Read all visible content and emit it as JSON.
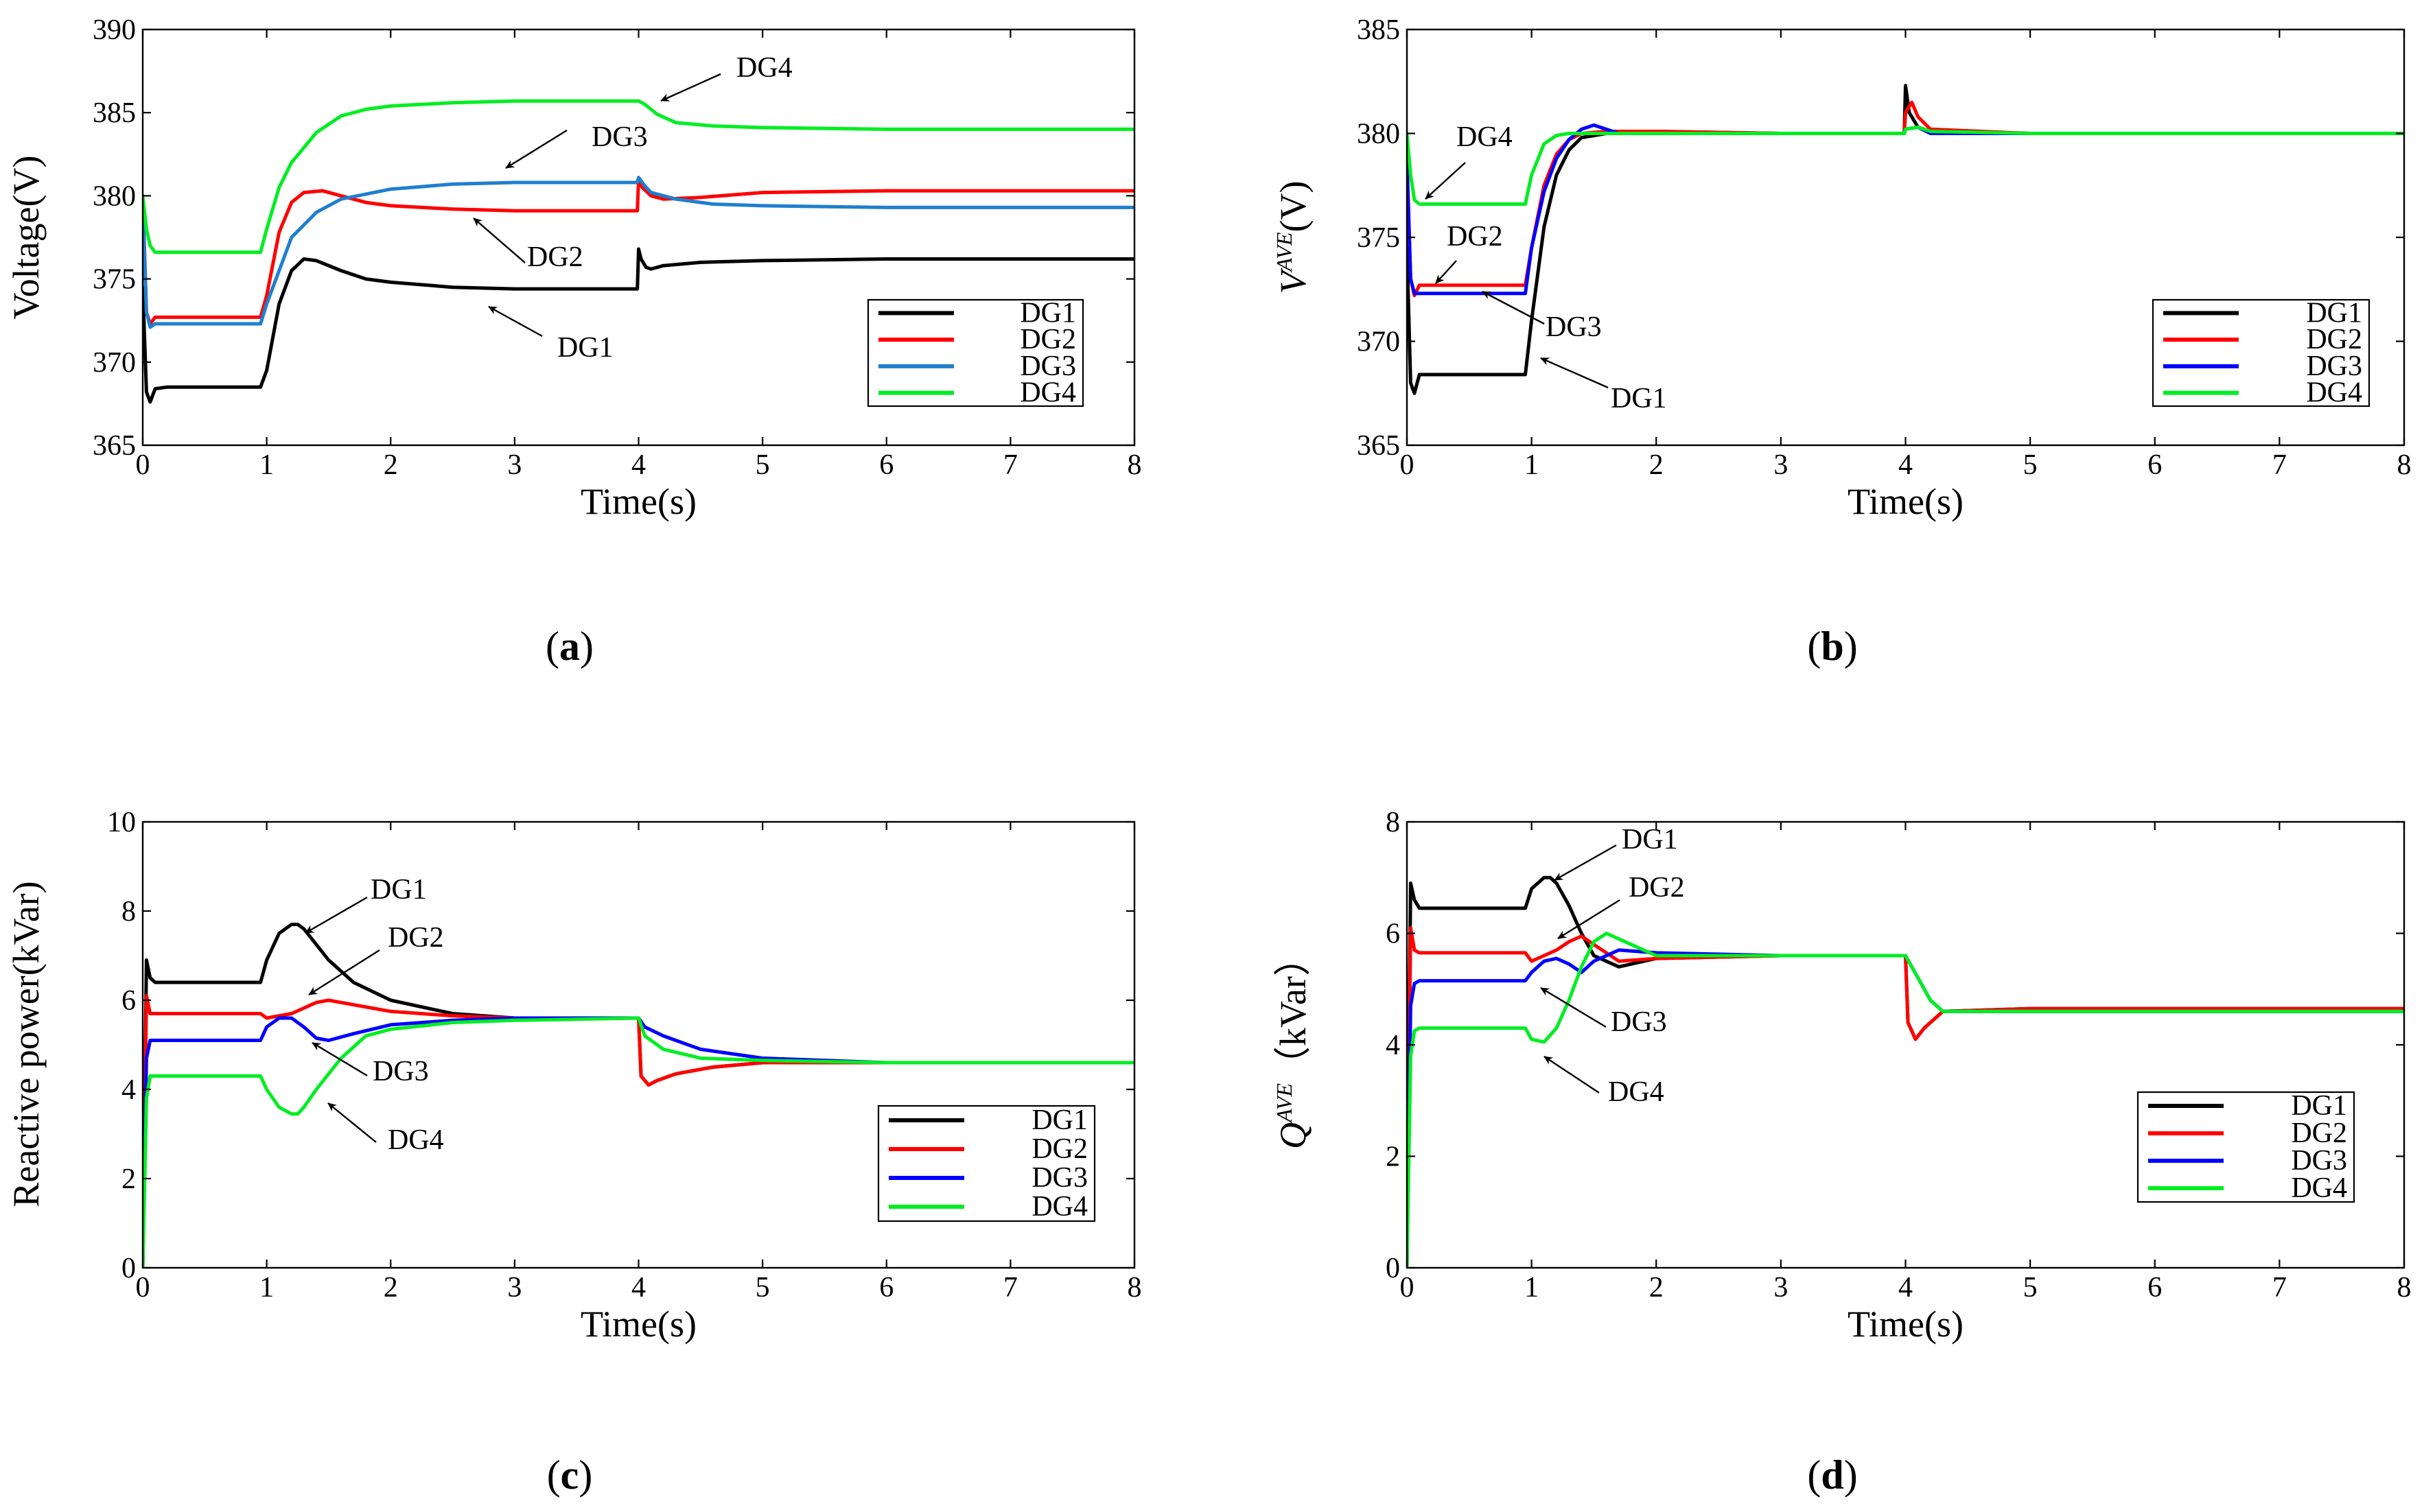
{
  "chart_data": [
    {
      "panel": "(a)",
      "type": "line",
      "xlabel": "Time(s)",
      "ylabel": "Voltage(V)",
      "xlim": [
        0,
        8
      ],
      "ylim": [
        365,
        390
      ],
      "xticks": [
        "0",
        "1",
        "2",
        "3",
        "4",
        "5",
        "6",
        "7",
        "8"
      ],
      "yticks": [
        "365",
        "370",
        "375",
        "380",
        "385",
        "390"
      ],
      "legend": "bottom-right",
      "annotations": [
        "DG4",
        "DG3",
        "DG2",
        "DG1"
      ],
      "series": [
        {
          "name": "DG1",
          "color": "#000000",
          "x": [
            0,
            0.03,
            0.06,
            0.1,
            0.2,
            0.5,
            0.95,
            1.0,
            1.1,
            1.2,
            1.3,
            1.4,
            1.6,
            1.8,
            2.0,
            2.5,
            3.0,
            3.5,
            3.99,
            4.0,
            4.02,
            4.06,
            4.1,
            4.2,
            4.5,
            5.0,
            6.0,
            7.0,
            8.0
          ],
          "y": [
            374.5,
            368.2,
            367.6,
            368.4,
            368.5,
            368.5,
            368.5,
            369.5,
            373.5,
            375.5,
            376.2,
            376.1,
            375.5,
            375.0,
            374.8,
            374.5,
            374.4,
            374.4,
            374.4,
            376.8,
            376.2,
            375.7,
            375.6,
            375.8,
            376.0,
            376.1,
            376.2,
            376.2,
            376.2
          ]
        },
        {
          "name": "DG2",
          "color": "#ff0000",
          "x": [
            0,
            0.03,
            0.06,
            0.1,
            0.2,
            0.5,
            0.95,
            1.0,
            1.1,
            1.2,
            1.3,
            1.45,
            1.6,
            1.8,
            2.0,
            2.5,
            3.0,
            3.5,
            3.99,
            4.0,
            4.03,
            4.1,
            4.2,
            4.5,
            5.0,
            6.0,
            7.0,
            8.0
          ],
          "y": [
            380.0,
            373.0,
            372.3,
            372.7,
            372.7,
            372.7,
            372.7,
            374.0,
            377.8,
            379.6,
            380.2,
            380.3,
            380.0,
            379.6,
            379.4,
            379.2,
            379.1,
            379.1,
            379.1,
            381.0,
            380.5,
            380.0,
            379.8,
            379.9,
            380.2,
            380.3,
            380.3,
            380.3
          ]
        },
        {
          "name": "DG3",
          "color": "#1f7fcf",
          "x": [
            0,
            0.03,
            0.06,
            0.1,
            0.2,
            0.5,
            0.95,
            1.0,
            1.2,
            1.4,
            1.6,
            2.0,
            2.5,
            3.0,
            3.5,
            3.99,
            4.0,
            4.05,
            4.1,
            4.3,
            4.6,
            5.0,
            6.0,
            7.0,
            8.0
          ],
          "y": [
            379.5,
            373.0,
            372.1,
            372.3,
            372.3,
            372.3,
            372.3,
            373.5,
            377.5,
            379.0,
            379.8,
            380.4,
            380.7,
            380.8,
            380.8,
            380.8,
            381.1,
            380.6,
            380.2,
            379.8,
            379.5,
            379.4,
            379.3,
            379.3,
            379.3
          ]
        },
        {
          "name": "DG4",
          "color": "#00ee22",
          "x": [
            0,
            0.03,
            0.06,
            0.1,
            0.2,
            0.5,
            0.95,
            1.0,
            1.1,
            1.2,
            1.4,
            1.6,
            1.8,
            2.0,
            2.5,
            3.0,
            3.5,
            4.0,
            4.05,
            4.15,
            4.3,
            4.6,
            5.0,
            6.0,
            7.0,
            8.0
          ],
          "y": [
            380.0,
            378.0,
            377.0,
            376.6,
            376.6,
            376.6,
            376.6,
            378.0,
            380.5,
            382.0,
            383.8,
            384.8,
            385.2,
            385.4,
            385.6,
            385.7,
            385.7,
            385.7,
            385.5,
            384.9,
            384.4,
            384.2,
            384.1,
            384.0,
            384.0,
            384.0
          ]
        }
      ]
    },
    {
      "panel": "(b)",
      "type": "line",
      "xlabel": "Time(s)",
      "ylabel": "V",
      "ylabel_sup": "AVE",
      "ylabel_unit": "(V)",
      "xlim": [
        0,
        8
      ],
      "ylim": [
        365,
        385
      ],
      "xticks": [
        "0",
        "1",
        "2",
        "3",
        "4",
        "5",
        "6",
        "7",
        "8"
      ],
      "yticks": [
        "365",
        "370",
        "375",
        "380",
        "385"
      ],
      "legend": "bottom-right",
      "annotations": [
        "DG4",
        "DG2",
        "DG3",
        "DG1"
      ],
      "series": [
        {
          "name": "DG1",
          "color": "#000000",
          "x": [
            0,
            0.03,
            0.06,
            0.1,
            0.2,
            0.5,
            0.95,
            1.0,
            1.1,
            1.2,
            1.3,
            1.4,
            1.6,
            1.8,
            2.0,
            3.0,
            3.99,
            4.0,
            4.03,
            4.1,
            4.2,
            5.0,
            6.0,
            7.0,
            8.0
          ],
          "y": [
            374.5,
            368.0,
            367.5,
            368.4,
            368.4,
            368.4,
            368.4,
            371.0,
            375.5,
            378.0,
            379.2,
            379.8,
            380.0,
            380.1,
            380.1,
            380.0,
            380.0,
            382.3,
            381.0,
            380.3,
            380.1,
            380.0,
            380.0,
            380.0,
            380.0
          ]
        },
        {
          "name": "DG2",
          "color": "#ff0000",
          "x": [
            0,
            0.03,
            0.06,
            0.1,
            0.2,
            0.5,
            0.95,
            1.0,
            1.1,
            1.2,
            1.3,
            1.4,
            1.6,
            1.8,
            2.0,
            3.0,
            3.99,
            4.0,
            4.05,
            4.1,
            4.2,
            5.0,
            6.0,
            7.0,
            8.0
          ],
          "y": [
            379.0,
            373.0,
            372.2,
            372.7,
            372.7,
            372.7,
            372.7,
            374.5,
            377.5,
            379.0,
            379.7,
            380.0,
            380.1,
            380.1,
            380.1,
            380.0,
            380.0,
            381.0,
            381.5,
            380.8,
            380.2,
            380.0,
            380.0,
            380.0,
            380.0
          ]
        },
        {
          "name": "DG3",
          "color": "#0000ff",
          "x": [
            0,
            0.03,
            0.06,
            0.1,
            0.2,
            0.5,
            0.95,
            1.0,
            1.1,
            1.2,
            1.3,
            1.4,
            1.5,
            1.7,
            2.0,
            3.0,
            3.99,
            4.0,
            4.1,
            4.2,
            5.0,
            6.0,
            7.0,
            8.0
          ],
          "y": [
            378.5,
            373.0,
            372.3,
            372.3,
            372.3,
            372.3,
            372.3,
            374.5,
            377.2,
            378.8,
            379.7,
            380.2,
            380.4,
            380.0,
            380.0,
            380.0,
            380.0,
            380.2,
            380.3,
            380.0,
            380.0,
            380.0,
            380.0,
            380.0
          ]
        },
        {
          "name": "DG4",
          "color": "#00ee22",
          "x": [
            0,
            0.03,
            0.06,
            0.1,
            0.2,
            0.5,
            0.95,
            1.0,
            1.1,
            1.2,
            1.3,
            1.5,
            2.0,
            3.0,
            3.99,
            4.0,
            4.1,
            4.2,
            5.0,
            6.0,
            7.0,
            8.0
          ],
          "y": [
            380.0,
            378.0,
            376.8,
            376.6,
            376.6,
            376.6,
            376.6,
            378.0,
            379.5,
            379.9,
            380.0,
            380.0,
            380.0,
            380.0,
            380.0,
            380.2,
            380.3,
            380.1,
            380.0,
            380.0,
            380.0,
            380.0
          ]
        }
      ]
    },
    {
      "panel": "(c)",
      "type": "line",
      "xlabel": "Time(s)",
      "ylabel": "Reactive power(kVar)",
      "xlim": [
        0,
        8
      ],
      "ylim": [
        0,
        10
      ],
      "xticks": [
        "0",
        "1",
        "2",
        "3",
        "4",
        "5",
        "6",
        "7",
        "8"
      ],
      "yticks": [
        "0",
        "2",
        "4",
        "6",
        "8",
        "10"
      ],
      "legend": "bottom-right",
      "annotations": [
        "DG1",
        "DG2",
        "DG3",
        "DG4"
      ],
      "series": [
        {
          "name": "DG1",
          "color": "#000000",
          "x": [
            0,
            0.03,
            0.06,
            0.1,
            0.2,
            0.5,
            0.95,
            1.0,
            1.1,
            1.2,
            1.25,
            1.3,
            1.5,
            1.7,
            2.0,
            2.5,
            3.0,
            4.0,
            4.02,
            4.08,
            4.15,
            4.3,
            4.6,
            5.0,
            6.0,
            7.0,
            8.0
          ],
          "y": [
            0.0,
            6.9,
            6.5,
            6.4,
            6.4,
            6.4,
            6.4,
            6.9,
            7.5,
            7.7,
            7.7,
            7.6,
            6.9,
            6.4,
            6.0,
            5.7,
            5.6,
            5.6,
            4.3,
            4.1,
            4.2,
            4.35,
            4.5,
            4.6,
            4.6,
            4.6,
            4.6
          ]
        },
        {
          "name": "DG2",
          "color": "#ff0000",
          "x": [
            0,
            0.03,
            0.06,
            0.1,
            0.2,
            0.5,
            0.95,
            1.0,
            1.2,
            1.4,
            1.5,
            1.6,
            2.0,
            2.5,
            3.0,
            4.0,
            4.02,
            4.08,
            4.15,
            4.3,
            4.6,
            5.0,
            6.0,
            7.0,
            8.0
          ],
          "y": [
            0.0,
            6.1,
            5.7,
            5.7,
            5.7,
            5.7,
            5.7,
            5.6,
            5.7,
            5.95,
            6.0,
            5.95,
            5.75,
            5.65,
            5.6,
            5.6,
            4.3,
            4.1,
            4.2,
            4.35,
            4.5,
            4.6,
            4.6,
            4.6,
            4.6
          ]
        },
        {
          "name": "DG3",
          "color": "#0000ff",
          "x": [
            0,
            0.03,
            0.06,
            0.1,
            0.2,
            0.5,
            0.95,
            1.0,
            1.1,
            1.2,
            1.3,
            1.4,
            1.5,
            1.7,
            2.0,
            2.5,
            3.0,
            4.0,
            4.05,
            4.2,
            4.5,
            5.0,
            6.0,
            7.0,
            8.0
          ],
          "y": [
            0.0,
            4.7,
            5.1,
            5.1,
            5.1,
            5.1,
            5.1,
            5.4,
            5.6,
            5.6,
            5.4,
            5.15,
            5.1,
            5.25,
            5.45,
            5.55,
            5.6,
            5.6,
            5.4,
            5.2,
            4.9,
            4.7,
            4.6,
            4.6,
            4.6
          ]
        },
        {
          "name": "DG4",
          "color": "#00ee22",
          "x": [
            0,
            0.03,
            0.06,
            0.1,
            0.2,
            0.5,
            0.95,
            1.0,
            1.1,
            1.2,
            1.25,
            1.3,
            1.4,
            1.6,
            1.8,
            2.0,
            2.5,
            3.0,
            4.0,
            4.05,
            4.2,
            4.5,
            5.0,
            6.0,
            7.0,
            8.0
          ],
          "y": [
            0.0,
            3.8,
            4.3,
            4.3,
            4.3,
            4.3,
            4.3,
            4.0,
            3.6,
            3.45,
            3.45,
            3.6,
            4.0,
            4.7,
            5.2,
            5.35,
            5.5,
            5.55,
            5.6,
            5.2,
            4.9,
            4.7,
            4.65,
            4.6,
            4.6,
            4.6
          ]
        }
      ]
    },
    {
      "panel": "(d)",
      "type": "line",
      "xlabel": "Time(s)",
      "ylabel": "Q",
      "ylabel_sup": "AVE",
      "ylabel_unit": "（kVar）",
      "xlim": [
        0,
        8
      ],
      "ylim": [
        0,
        8
      ],
      "xticks": [
        "0",
        "1",
        "2",
        "3",
        "4",
        "5",
        "6",
        "7",
        "8"
      ],
      "yticks": [
        "0",
        "2",
        "4",
        "6",
        "8"
      ],
      "legend": "bottom-right",
      "annotations": [
        "DG1",
        "DG2",
        "DG3",
        "DG4"
      ],
      "series": [
        {
          "name": "DG1",
          "color": "#000000",
          "x": [
            0,
            0.03,
            0.06,
            0.1,
            0.2,
            0.5,
            0.95,
            1.0,
            1.1,
            1.15,
            1.2,
            1.3,
            1.4,
            1.5,
            1.7,
            2.0,
            3.0,
            4.0,
            4.02,
            4.08,
            4.15,
            4.3,
            5.0,
            6.0,
            7.0,
            8.0
          ],
          "y": [
            0.0,
            6.9,
            6.6,
            6.45,
            6.45,
            6.45,
            6.45,
            6.8,
            7.0,
            7.0,
            6.9,
            6.5,
            6.0,
            5.6,
            5.4,
            5.55,
            5.6,
            5.6,
            4.4,
            4.1,
            4.3,
            4.6,
            4.65,
            4.65,
            4.65,
            4.65
          ]
        },
        {
          "name": "DG2",
          "color": "#ff0000",
          "x": [
            0,
            0.03,
            0.06,
            0.1,
            0.2,
            0.5,
            0.95,
            1.0,
            1.1,
            1.2,
            1.3,
            1.4,
            1.5,
            1.7,
            2.0,
            3.0,
            4.0,
            4.02,
            4.08,
            4.15,
            4.3,
            5.0,
            6.0,
            7.0,
            8.0
          ],
          "y": [
            0.0,
            6.1,
            5.7,
            5.65,
            5.65,
            5.65,
            5.65,
            5.5,
            5.6,
            5.7,
            5.85,
            5.95,
            5.8,
            5.5,
            5.55,
            5.6,
            5.6,
            4.4,
            4.1,
            4.3,
            4.6,
            4.65,
            4.65,
            4.65,
            4.65
          ]
        },
        {
          "name": "DG3",
          "color": "#0000ff",
          "x": [
            0,
            0.03,
            0.06,
            0.1,
            0.2,
            0.5,
            0.95,
            1.0,
            1.1,
            1.2,
            1.3,
            1.4,
            1.5,
            1.7,
            2.0,
            3.0,
            4.0,
            4.1,
            4.2,
            4.3,
            5.0,
            6.0,
            7.0,
            8.0
          ],
          "y": [
            0.0,
            4.7,
            5.1,
            5.15,
            5.15,
            5.15,
            5.15,
            5.3,
            5.5,
            5.55,
            5.45,
            5.3,
            5.5,
            5.7,
            5.65,
            5.6,
            5.6,
            5.2,
            4.8,
            4.6,
            4.6,
            4.6,
            4.6,
            4.6
          ]
        },
        {
          "name": "DG4",
          "color": "#00ee22",
          "x": [
            0,
            0.03,
            0.06,
            0.1,
            0.2,
            0.5,
            0.95,
            1.0,
            1.1,
            1.2,
            1.3,
            1.4,
            1.5,
            1.6,
            1.8,
            2.0,
            3.0,
            4.0,
            4.1,
            4.2,
            4.3,
            5.0,
            6.0,
            7.0,
            8.0
          ],
          "y": [
            0.0,
            3.8,
            4.25,
            4.3,
            4.3,
            4.3,
            4.3,
            4.1,
            4.05,
            4.3,
            4.8,
            5.4,
            5.85,
            6.0,
            5.8,
            5.6,
            5.6,
            5.6,
            5.2,
            4.8,
            4.6,
            4.6,
            4.6,
            4.6,
            4.6
          ]
        }
      ]
    }
  ]
}
